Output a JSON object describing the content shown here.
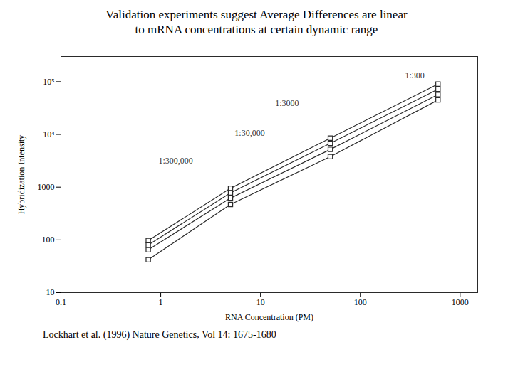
{
  "chart_data": {
    "type": "line",
    "title": "Validation experiments suggest Average Differences are linear",
    "subtitle": "to mRNA concentrations at certain dynamic range",
    "footer": "Lockhart et al. (1996) Nature Genetics, Vol 14: 1675-1680",
    "x_label": "RNA Concentration (PM)",
    "y_label": "Hybridization Intensity",
    "x": [
      0.75,
      5.0,
      50.0,
      600.0
    ],
    "series": [
      {
        "name": "1:300",
        "values": [
          97,
          950,
          8500,
          90000
        ]
      },
      {
        "name": "1:3000",
        "values": [
          80,
          780,
          6800,
          72000
        ]
      },
      {
        "name": "1:30,000",
        "values": [
          65,
          620,
          5200,
          57000
        ]
      },
      {
        "name": "1:300,000",
        "values": [
          42,
          470,
          3800,
          45000
        ]
      }
    ],
    "annotations": [
      {
        "text": "1:300",
        "x": 280,
        "y": 115000
      },
      {
        "text": "1:3000",
        "x": 14,
        "y": 35000
      },
      {
        "text": "1:30,000",
        "x": 5.5,
        "y": 9500
      },
      {
        "text": "1:300,000",
        "x": 0.95,
        "y": 2800
      }
    ],
    "log": true,
    "xlim": [
      0.1,
      1500
    ],
    "ylim": [
      10,
      300000
    ],
    "xticks": [
      0.1,
      1,
      10,
      100,
      1000
    ],
    "yticks": [
      10,
      100,
      1000,
      {
        "value": 10000,
        "label": "10⁴"
      },
      {
        "value": 100000,
        "label": "10⁵"
      }
    ],
    "color": "#2a2a2a",
    "marker": "square",
    "grid": false
  }
}
